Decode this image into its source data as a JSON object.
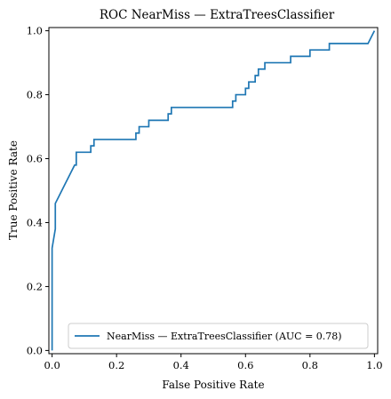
{
  "chart_data": {
    "type": "line",
    "title": "ROC NearMiss — ExtraTreesClassifier",
    "xlabel": "False Positive Rate",
    "ylabel": "True Positive Rate",
    "xlim": [
      -0.01,
      1.01
    ],
    "ylim": [
      -0.01,
      1.01
    ],
    "xticks": [
      "0.0",
      "0.2",
      "0.4",
      "0.6",
      "0.8",
      "1.0"
    ],
    "yticks": [
      "0.0",
      "0.2",
      "0.4",
      "0.6",
      "0.8",
      "1.0"
    ],
    "grid": false,
    "legend_position": "lower-right",
    "series": [
      {
        "name": "NearMiss — ExtraTreesClassifier (AUC = 0.78)",
        "color": "#1f77b4",
        "x": [
          0.0,
          0.0,
          0.0,
          0.01,
          0.01,
          0.01,
          0.02,
          0.02,
          0.03,
          0.03,
          0.04,
          0.04,
          0.05,
          0.05,
          0.06,
          0.06,
          0.065,
          0.07,
          0.075,
          0.075,
          0.08,
          0.1,
          0.12,
          0.12,
          0.13,
          0.13,
          0.25,
          0.26,
          0.26,
          0.27,
          0.27,
          0.3,
          0.3,
          0.36,
          0.36,
          0.37,
          0.37,
          0.56,
          0.56,
          0.57,
          0.57,
          0.6,
          0.6,
          0.61,
          0.61,
          0.63,
          0.63,
          0.64,
          0.64,
          0.66,
          0.66,
          0.69,
          0.69,
          0.74,
          0.74,
          0.8,
          0.8,
          0.86,
          0.86,
          0.98,
          0.99,
          1.0
        ],
        "y": [
          0.0,
          0.32,
          0.32,
          0.38,
          0.38,
          0.46,
          0.48,
          0.48,
          0.5,
          0.5,
          0.52,
          0.52,
          0.54,
          0.54,
          0.56,
          0.56,
          0.57,
          0.58,
          0.58,
          0.62,
          0.62,
          0.62,
          0.62,
          0.64,
          0.64,
          0.66,
          0.66,
          0.66,
          0.68,
          0.68,
          0.7,
          0.7,
          0.72,
          0.72,
          0.74,
          0.74,
          0.76,
          0.76,
          0.78,
          0.78,
          0.8,
          0.8,
          0.82,
          0.82,
          0.84,
          0.84,
          0.86,
          0.86,
          0.88,
          0.88,
          0.9,
          0.9,
          0.9,
          0.9,
          0.92,
          0.92,
          0.94,
          0.94,
          0.96,
          0.96,
          0.98,
          1.0
        ]
      }
    ]
  }
}
